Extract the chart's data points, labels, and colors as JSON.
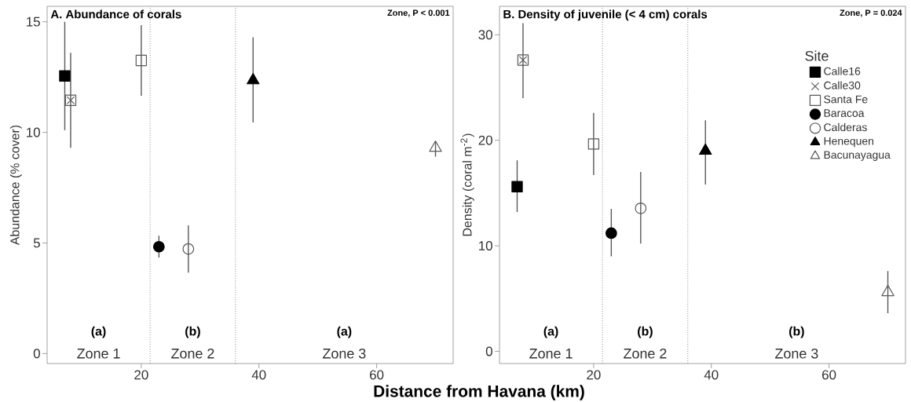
{
  "chart_data": [
    {
      "type": "scatter",
      "title": "A. Abundance of corals",
      "ylabel": "Abundance (% cover)",
      "xlabel": "Distance from Havana (km)",
      "xlim": [
        4,
        73
      ],
      "ylim": [
        -0.45,
        15.7
      ],
      "xticks": [
        20,
        40,
        60
      ],
      "yticks": [
        0,
        5,
        10,
        15
      ],
      "legend": false,
      "grid": false,
      "annotations": [
        "Zone, P < 0.001",
        "(a)",
        "Zone 1",
        "(b)",
        "Zone 2",
        "(a)",
        "Zone 3"
      ],
      "ref_lines": [
        {
          "axis": "x",
          "value": 21.5,
          "color": "#8c8c8c",
          "line_style": "dotted"
        },
        {
          "axis": "x",
          "value": 36,
          "color": "#8c8c8c",
          "line_style": "dotted"
        }
      ],
      "series": [
        {
          "color": "#000000",
          "marker": "square",
          "x": [
            7
          ],
          "values": [
            12.55
          ],
          "errors": [
            [
              10.1,
              15.0
            ]
          ]
        },
        {
          "color": "#595959",
          "marker": "cross",
          "x": [
            8
          ],
          "values": [
            11.45
          ],
          "errors": [
            [
              9.3,
              13.6
            ]
          ]
        },
        {
          "color": "#595959",
          "marker": "square",
          "x": [
            20
          ],
          "values": [
            13.25
          ],
          "errors": [
            [
              11.65,
              14.85
            ]
          ]
        },
        {
          "color": "#000000",
          "marker": "circle",
          "x": [
            23
          ],
          "values": [
            4.83
          ],
          "errors": [
            [
              4.34,
              5.33
            ]
          ]
        },
        {
          "color": "#595959",
          "marker": "circle",
          "x": [
            28
          ],
          "values": [
            4.73
          ],
          "errors": [
            [
              3.66,
              5.8
            ]
          ]
        },
        {
          "color": "#000000",
          "marker": "triangle",
          "x": [
            39
          ],
          "values": [
            12.35
          ],
          "errors": [
            [
              10.45,
              14.3
            ]
          ]
        },
        {
          "color": "#595959",
          "marker": "triangle",
          "x": [
            70
          ],
          "values": [
            9.3
          ],
          "errors": [
            [
              8.9,
              9.6
            ]
          ]
        }
      ]
    },
    {
      "type": "scatter",
      "title": "B. Density of juvenile (< 4 cm) corals",
      "ylabel": "Density (coral m$^{-2}$)",
      "xlim": [
        4,
        73
      ],
      "ylim": [
        -1.16,
        32.7
      ],
      "xticks": [
        20,
        40,
        60
      ],
      "yticks": [
        0,
        10,
        20,
        30
      ],
      "legend": "right",
      "legend_title": "Site",
      "grid": false,
      "annotations": [
        "Zone, P = 0.024",
        "(a)",
        "Zone 1",
        "(b)",
        "Zone 2",
        "(b)",
        "Zone 3"
      ],
      "ref_lines": [
        {
          "axis": "x",
          "value": 21.5,
          "color": "#8c8c8c",
          "line_style": "dotted"
        },
        {
          "axis": "x",
          "value": 36,
          "color": "#8c8c8c",
          "line_style": "dotted"
        }
      ],
      "series": [
        {
          "name": "Calle16",
          "color": "#000000",
          "marker": "square",
          "x": [
            7
          ],
          "values": [
            15.6
          ],
          "errors": [
            [
              13.2,
              18.1
            ]
          ]
        },
        {
          "name": "Calle30",
          "color": "#595959",
          "marker": "cross",
          "x": [
            8
          ],
          "values": [
            27.6
          ],
          "errors": [
            [
              24.0,
              31.1
            ]
          ]
        },
        {
          "name": "Santa Fe",
          "color": "#595959",
          "marker": "square",
          "x": [
            20
          ],
          "values": [
            19.65
          ],
          "errors": [
            [
              16.7,
              22.6
            ]
          ]
        },
        {
          "name": "Baracoa",
          "color": "#000000",
          "marker": "circle",
          "x": [
            23
          ],
          "values": [
            11.2
          ],
          "errors": [
            [
              9.0,
              13.5
            ]
          ]
        },
        {
          "name": "Calderas",
          "color": "#595959",
          "marker": "circle",
          "x": [
            28
          ],
          "values": [
            13.55
          ],
          "errors": [
            [
              10.2,
              17.0
            ]
          ]
        },
        {
          "name": "Henequen",
          "color": "#000000",
          "marker": "triangle",
          "x": [
            39
          ],
          "values": [
            19.0
          ],
          "errors": [
            [
              15.8,
              21.9
            ]
          ]
        },
        {
          "name": "Bacunayagua",
          "color": "#595959",
          "marker": "triangle",
          "x": [
            70
          ],
          "values": [
            5.6
          ],
          "errors": [
            [
              3.6,
              7.6
            ]
          ]
        }
      ]
    }
  ]
}
